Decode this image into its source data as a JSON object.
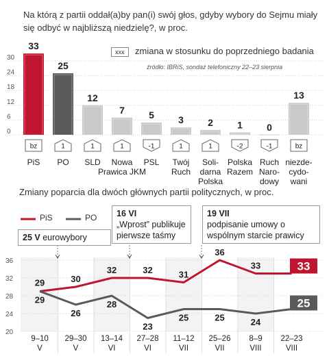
{
  "title": "Na którą z partii oddał(a)by pan(i) swój głos, gdyby wybory do Sejmu miały się odbyć w najbliższą niedzielę?, w proc.",
  "legend_box": "xxx",
  "legend_text": "zmiana w stosunku do poprzedniego badania",
  "source": "źródło: IBRiS, sondaż telefoniczny 22–23 sierpnia",
  "title2": "Zmiany poparcia dla dwóch głównych partii politycznych, w proc.",
  "colors": {
    "pis": "#c0152f",
    "po": "#5a5a5a",
    "others": "#c9c9c9"
  },
  "chart_data": [
    {
      "type": "bar",
      "categories": [
        "PiS",
        "PO",
        "SLD",
        "Nowa Prawica JKM",
        "PSL",
        "Twój Ruch",
        "Solidarna Polska",
        "Polska Razem",
        "Ruch Narodowy",
        "niezdecydowani"
      ],
      "category_lines": [
        [
          "PiS"
        ],
        [
          "PO"
        ],
        [
          "SLD"
        ],
        [
          "Nowa",
          "Prawica JKM"
        ],
        [
          "PSL"
        ],
        [
          "Twój",
          "Ruch"
        ],
        [
          "Soli-",
          "darna",
          "Polska"
        ],
        [
          "Polska",
          "Razem"
        ],
        [
          "Ruch",
          "Naro-",
          "dowy"
        ],
        [
          "niezde-",
          "cydo-",
          "wani"
        ]
      ],
      "values": [
        33,
        25,
        12,
        7,
        5,
        3,
        2,
        1,
        0,
        13
      ],
      "changes": [
        "bz",
        "1",
        "1",
        "1",
        "-1",
        "1",
        "1",
        "-2",
        "-1",
        "bz"
      ],
      "change_direction": [
        "none",
        "up",
        "up",
        "up",
        "down",
        "up",
        "up",
        "down",
        "down",
        "none"
      ],
      "yticks": [
        "30",
        "24",
        "18",
        "12",
        "6",
        "0"
      ],
      "ylim": [
        0,
        33
      ]
    },
    {
      "type": "line",
      "x": [
        "9–10 V",
        "29–30 V",
        "13–14 VI",
        "27–28 VI",
        "11–12 VII",
        "25–26 VII",
        "8–9 VIII",
        "22–23 VIII"
      ],
      "x_lines": [
        [
          "9–10",
          "V"
        ],
        [
          "29–30",
          "V"
        ],
        [
          "13–14",
          "VI"
        ],
        [
          "27–28",
          "VI"
        ],
        [
          "11–12",
          "VII"
        ],
        [
          "25–26",
          "VII"
        ],
        [
          "8–9",
          "VIII"
        ],
        [
          "22–23",
          "VIII"
        ]
      ],
      "series": [
        {
          "name": "PiS",
          "values": [
            29,
            30,
            32,
            32,
            31,
            36,
            33,
            33
          ]
        },
        {
          "name": "PO",
          "values": [
            29,
            26,
            28,
            23,
            25,
            25,
            24,
            25
          ]
        }
      ],
      "final_labels": [
        "33",
        "25"
      ],
      "yticks": [
        "36",
        "32",
        "28",
        "24",
        "20"
      ],
      "ylim": [
        20,
        36
      ],
      "annotations": [
        {
          "date": "25 V",
          "text": "eurowybory",
          "at_index": 0
        },
        {
          "date": "16 VI",
          "text": "„Wprost” publikuje pierwsze taśmy",
          "at_index": 2
        },
        {
          "date": "19 VII",
          "text": "podpisanie umowy o wspólnym starcie prawicy",
          "at_index": 4
        }
      ]
    }
  ]
}
